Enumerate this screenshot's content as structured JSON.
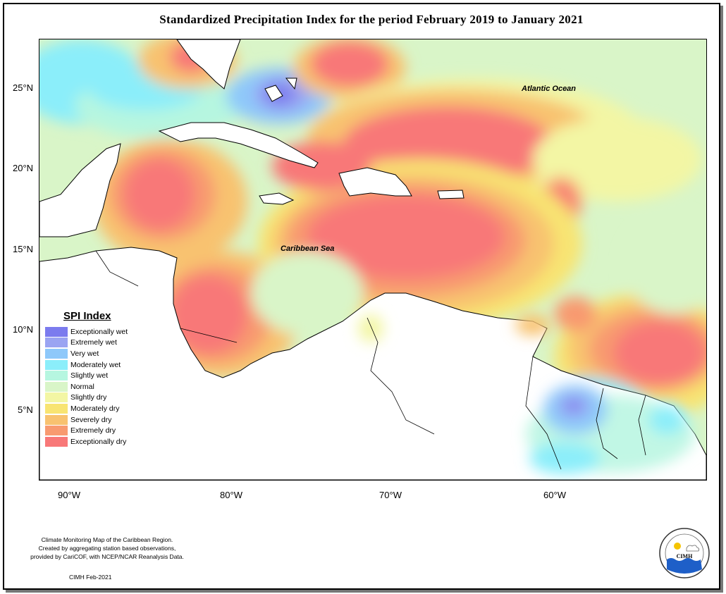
{
  "title": "Standardized Precipitation Index for the period February 2019 to January 2021",
  "map": {
    "lat_ticks": [
      "25°N",
      "20°N",
      "15°N",
      "10°N",
      "5°N"
    ],
    "lon_ticks": [
      "90°W",
      "80°W",
      "70°W",
      "60°W"
    ],
    "labels": {
      "atlantic": "Atlantic Ocean",
      "caribbean": "Caribbean Sea"
    }
  },
  "legend": {
    "title": "SPI Index",
    "items": [
      {
        "label": "Exceptionally wet",
        "color": "#7b7bee"
      },
      {
        "label": "Extremely wet",
        "color": "#9aa4f2"
      },
      {
        "label": "Very wet",
        "color": "#8ec8fa"
      },
      {
        "label": "Moderately wet",
        "color": "#8beefa"
      },
      {
        "label": "Slightly wet",
        "color": "#b6f6e0"
      },
      {
        "label": "Normal",
        "color": "#d9f5c8"
      },
      {
        "label": "Slightly dry",
        "color": "#f3f6a4"
      },
      {
        "label": "Moderately dry",
        "color": "#f8e472"
      },
      {
        "label": "Severely dry",
        "color": "#f8c270"
      },
      {
        "label": "Extremely dry",
        "color": "#f89a70"
      },
      {
        "label": "Exceptionally dry",
        "color": "#f87878"
      }
    ]
  },
  "credits": {
    "line1": "Climate Monitoring Map of the Caribbean Region.",
    "line2": "Created by aggregating station based observations,",
    "line3": "provided by CariCOF, with NCEP/NCAR Reanalysis Data.",
    "stamp": "CIMH Feb-2021"
  },
  "logo": {
    "text": "CIMH"
  }
}
